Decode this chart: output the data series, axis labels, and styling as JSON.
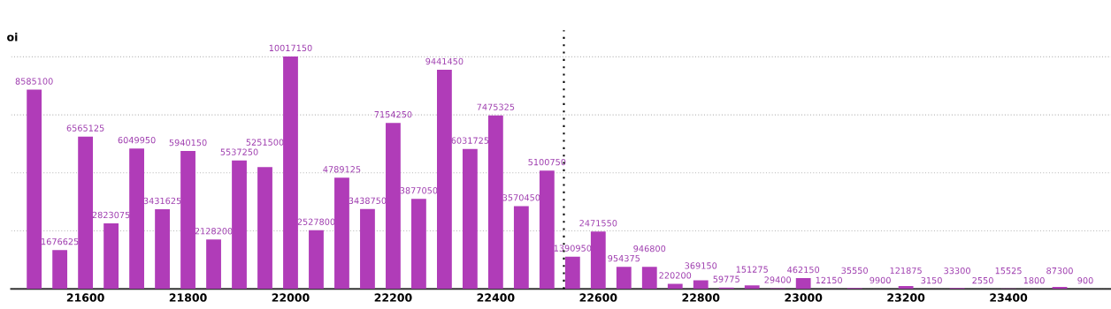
{
  "chart_data": {
    "type": "bar",
    "title": "oi",
    "x": [
      21500,
      21550,
      21600,
      21650,
      21700,
      21750,
      21800,
      21850,
      21900,
      21950,
      22000,
      22050,
      22100,
      22150,
      22200,
      22250,
      22300,
      22350,
      22400,
      22450,
      22500,
      22550,
      22600,
      22650,
      22700,
      22750,
      22800,
      22850,
      22900,
      22950,
      23000,
      23050,
      23100,
      23150,
      23200,
      23250,
      23300,
      23350,
      23400,
      23450,
      23500,
      23550
    ],
    "values": [
      8585100,
      1676625,
      6565125,
      2823075,
      6049950,
      3431625,
      5940150,
      2128200,
      5537250,
      5251500,
      10017150,
      2527800,
      4789125,
      3438750,
      7154250,
      3877050,
      9441450,
      6031725,
      7475325,
      3570450,
      5100750,
      1390950,
      2471550,
      954375,
      946800,
      220200,
      369150,
      59775,
      151275,
      29400,
      462150,
      12150,
      35550,
      9900,
      121875,
      3150,
      33300,
      2550,
      15525,
      1800,
      87300,
      900
    ],
    "color": "#b03cb8",
    "data_labels": true,
    "xlim": [
      21455,
      23600
    ],
    "xticks": [
      21600,
      21800,
      22000,
      22200,
      22400,
      22600,
      22800,
      23000,
      23200,
      23400
    ],
    "yticks": [
      {
        "value": 0,
        "label": null
      },
      {
        "value": 2500000,
        "label": null
      },
      {
        "value": 5000000,
        "label": null
      },
      {
        "value": 7500000,
        "label": null
      },
      {
        "value": 10000000,
        "label": null
      }
    ],
    "tick_labels": "x",
    "grid": "y",
    "legend": false,
    "ref_lines": [
      {
        "axis": "x",
        "value": 22533,
        "color": "#000000",
        "line_style": "dotted"
      }
    ]
  }
}
